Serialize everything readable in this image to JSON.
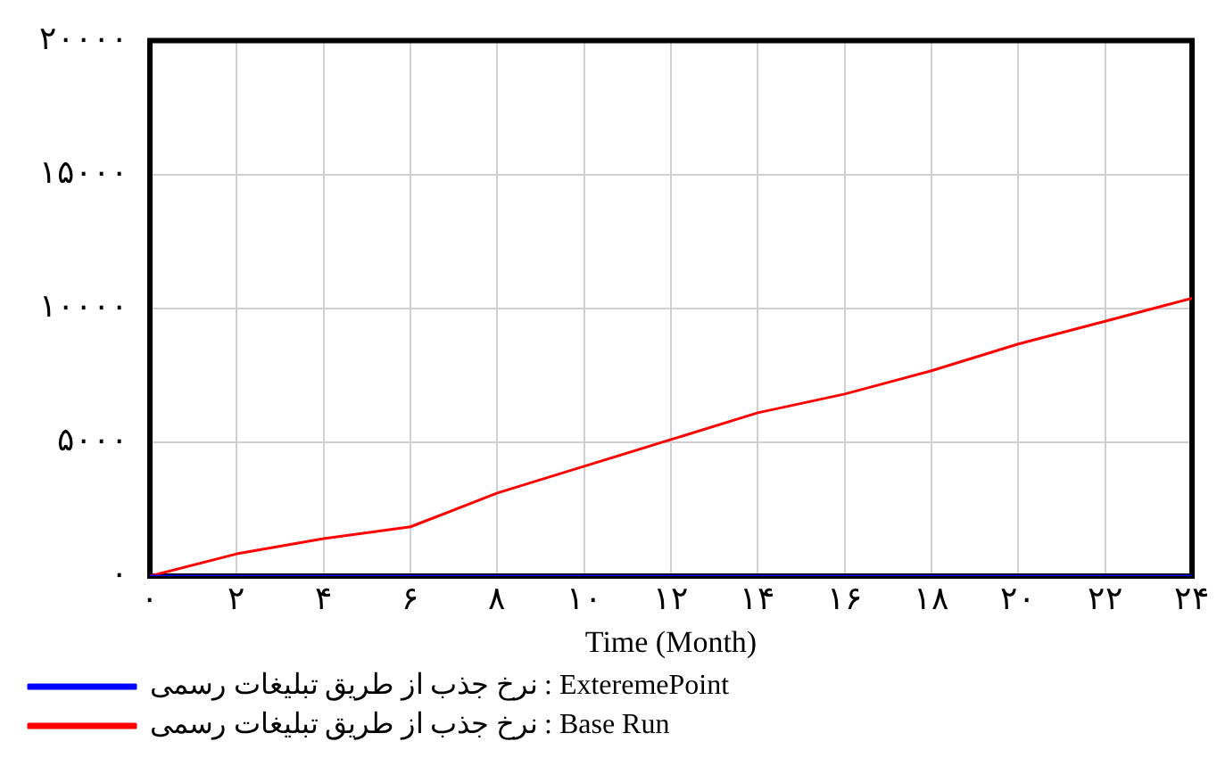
{
  "chart_data": {
    "type": "line",
    "xlabel": "Time (Month)",
    "x": [
      0,
      2,
      4,
      6,
      8,
      10,
      12,
      14,
      16,
      18,
      20,
      22,
      24
    ],
    "series": [
      {
        "name": "نرخ جذب از طریق تبلیغات رسمی : ExteremePoint",
        "color": "#0000ff",
        "values": [
          0,
          0,
          0,
          0,
          0,
          0,
          0,
          0,
          0,
          0,
          0,
          0,
          0
        ]
      },
      {
        "name": "نرخ جذب از طریق تبلیغات رسمی : Base Run",
        "color": "#ff0000",
        "values": [
          0,
          830,
          1400,
          1840,
          3100,
          4100,
          5100,
          6100,
          6800,
          7670,
          8670,
          9520,
          10380
        ]
      }
    ],
    "xlim": [
      0,
      24
    ],
    "xticks": [
      {
        "value": 0,
        "label": "۰"
      },
      {
        "value": 2,
        "label": "۲"
      },
      {
        "value": 4,
        "label": "۴"
      },
      {
        "value": 6,
        "label": "۶"
      },
      {
        "value": 8,
        "label": "۸"
      },
      {
        "value": 10,
        "label": "۱۰"
      },
      {
        "value": 12,
        "label": "۱۲"
      },
      {
        "value": 14,
        "label": "۱۴"
      },
      {
        "value": 16,
        "label": "۱۶"
      },
      {
        "value": 18,
        "label": "۱۸"
      },
      {
        "value": 20,
        "label": "۲۰"
      },
      {
        "value": 22,
        "label": "۲۲"
      },
      {
        "value": 24,
        "label": "۲۴"
      }
    ],
    "ylim": [
      0,
      20000
    ],
    "yticks": [
      {
        "value": 0,
        "label": "۰"
      },
      {
        "value": 5000,
        "label": "۵۰۰۰"
      },
      {
        "value": 10000,
        "label": "۱۰۰۰۰"
      },
      {
        "value": 15000,
        "label": "۱۵۰۰۰"
      },
      {
        "value": 20000,
        "label": "۲۰۰۰۰"
      }
    ],
    "grid": true,
    "legend": "bottom",
    "marker": "none",
    "line_style": "solid"
  }
}
